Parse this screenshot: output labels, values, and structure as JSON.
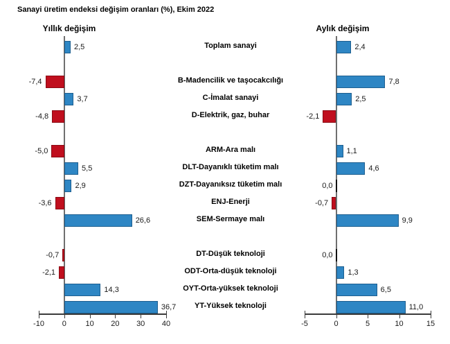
{
  "title": "Sanayi üretim endeksi değişim oranları (%), Ekim 2022",
  "colors": {
    "positive_bar": "#2E86C4",
    "negative_bar": "#C00F1E",
    "zero_bar": "#111111",
    "axis_line": "#6f6f6f",
    "x_axis_line": "#3a3a3a",
    "text": "#000000"
  },
  "chart_data": [
    {
      "type": "bar",
      "orientation": "horizontal",
      "title": "Yıllık değişim",
      "categories": [
        "Toplam sanayi",
        "B-Madencilik ve taşocakcılığı",
        "C-İmalat sanayi",
        "D-Elektrik, gaz, buhar",
        "ARM-Ara malı",
        "DLT-Dayanıklı tüketim malı",
        "DZT-Dayanıksız tüketim malı",
        "ENJ-Enerji",
        "SEM-Sermaye malı",
        "DT-Düşük teknoloji",
        "ODT-Orta-düşük teknoloji",
        "OYT-Orta-yüksek teknoloji",
        "YT-Yüksek teknoloji"
      ],
      "values": [
        2.5,
        -7.4,
        3.7,
        -4.8,
        -5.0,
        5.5,
        2.9,
        -3.6,
        26.6,
        -0.7,
        -2.1,
        14.3,
        36.7
      ],
      "labels": [
        "2,5",
        "-7,4",
        "3,7",
        "-4,8",
        "-5,0",
        "5,5",
        "2,9",
        "-3,6",
        "26,6",
        "-0,7",
        "-2,1",
        "14,3",
        "36,7"
      ],
      "xlim": [
        -10,
        40
      ],
      "xticks": [
        -10,
        0,
        10,
        20,
        30,
        40
      ],
      "grid": false,
      "legend": "none"
    },
    {
      "type": "bar",
      "orientation": "horizontal",
      "title": "Aylık değişim",
      "categories": [
        "Toplam sanayi",
        "B-Madencilik ve taşocakcılığı",
        "C-İmalat sanayi",
        "D-Elektrik, gaz, buhar",
        "ARM-Ara malı",
        "DLT-Dayanıklı tüketim malı",
        "DZT-Dayanıksız tüketim malı",
        "ENJ-Enerji",
        "SEM-Sermaye malı",
        "DT-Düşük teknoloji",
        "ODT-Orta-düşük teknoloji",
        "OYT-Orta-yüksek teknoloji",
        "YT-Yüksek teknoloji"
      ],
      "values": [
        2.4,
        7.8,
        2.5,
        -2.1,
        1.1,
        4.6,
        0.0,
        -0.7,
        9.9,
        0.0,
        1.3,
        6.5,
        11.0
      ],
      "labels": [
        "2,4",
        "7,8",
        "2,5",
        "-2,1",
        "1,1",
        "4,6",
        "0,0",
        "-0,7",
        "9,9",
        "0,0",
        "1,3",
        "6,5",
        "11,0"
      ],
      "xlim": [
        -5,
        15
      ],
      "xticks": [
        -5,
        0,
        5,
        10,
        15
      ],
      "grid": false,
      "legend": "none"
    }
  ]
}
